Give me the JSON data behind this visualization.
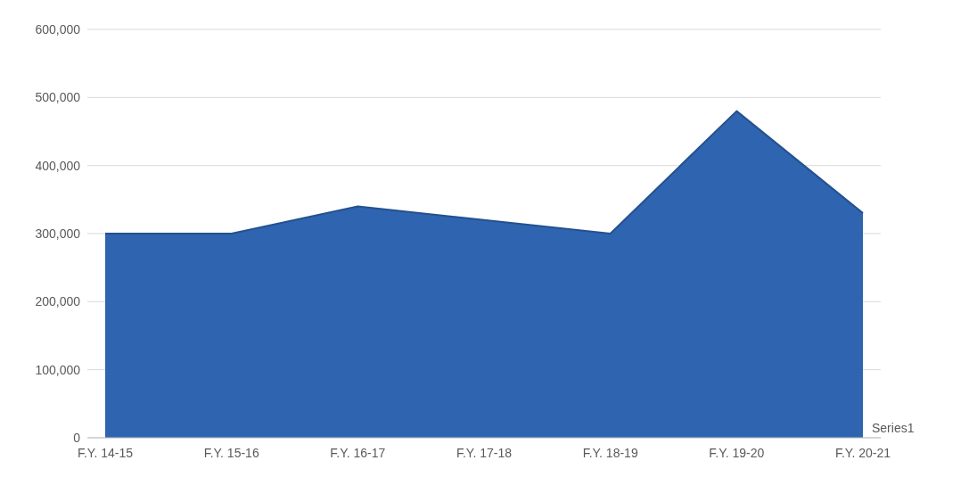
{
  "chart_data": {
    "type": "area",
    "categories": [
      "F.Y. 14-15",
      "F.Y. 15-16",
      "F.Y. 16-17",
      "F.Y. 17-18",
      "F.Y. 18-19",
      "F.Y. 19-20",
      "F.Y. 20-21"
    ],
    "series": [
      {
        "name": "Series1",
        "color": "#2e64b0",
        "values": [
          300000,
          300000,
          340000,
          320000,
          300000,
          480000,
          330000
        ]
      }
    ],
    "ylim": [
      0,
      600000
    ],
    "yticks": [
      {
        "value": 0,
        "label": "0"
      },
      {
        "value": 100000,
        "label": "100,000"
      },
      {
        "value": 200000,
        "label": "200,000"
      },
      {
        "value": 300000,
        "label": "300,000"
      },
      {
        "value": 400000,
        "label": "400,000"
      },
      {
        "value": 500000,
        "label": "500,000"
      },
      {
        "value": 600000,
        "label": "600,000"
      }
    ],
    "grid": "y",
    "legend": false
  }
}
